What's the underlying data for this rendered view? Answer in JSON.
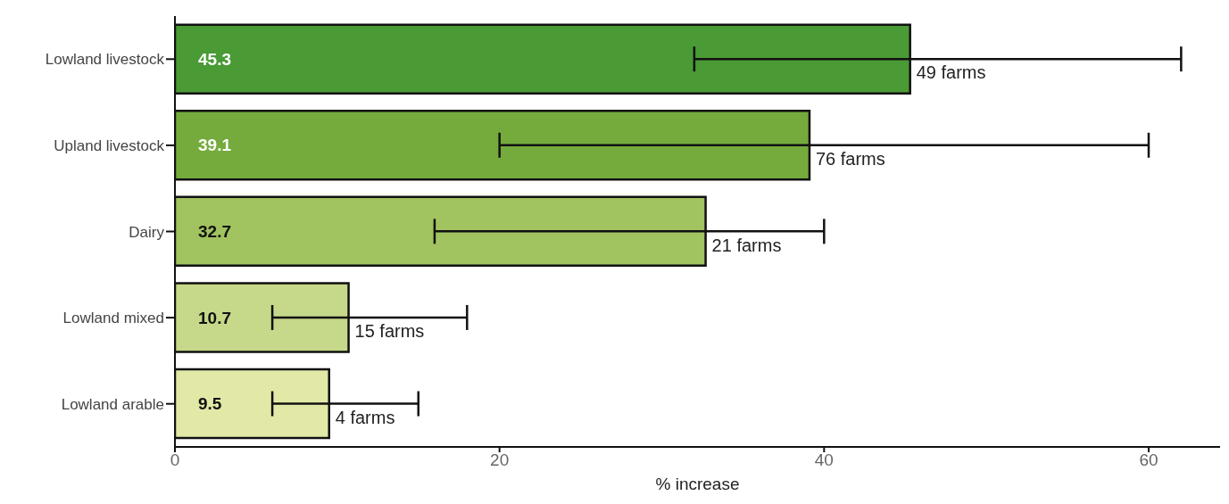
{
  "chart_data": {
    "type": "bar",
    "orientation": "horizontal",
    "xlabel": "% increase",
    "categories": [
      "Lowland livestock",
      "Upland livestock",
      "Dairy",
      "Lowland mixed",
      "Lowland arable"
    ],
    "values": [
      45.3,
      39.1,
      32.7,
      10.7,
      9.5
    ],
    "colors": [
      "#4a9a35",
      "#74ab3c",
      "#a1c360",
      "#c6d98a",
      "#e2e9a6"
    ],
    "errors": [
      [
        32,
        62
      ],
      [
        20,
        60
      ],
      [
        16,
        40
      ],
      [
        6,
        18
      ],
      [
        6,
        15
      ]
    ],
    "xlim": [
      0,
      64.4
    ],
    "xticks": [
      0,
      20,
      40,
      60
    ],
    "grid": false,
    "legend": false,
    "data_labels": true,
    "annotations": [
      {
        "text": "49 farms",
        "x": 45.3,
        "y": "Lowland livestock"
      },
      {
        "text": "76 farms",
        "x": 39.1,
        "y": "Upland livestock"
      },
      {
        "text": "21 farms",
        "x": 32.7,
        "y": "Dairy"
      },
      {
        "text": "15 farms",
        "x": 10.7,
        "y": "Lowland mixed"
      },
      {
        "text": "4 farms",
        "x": 9.5,
        "y": "Lowland arable"
      }
    ]
  }
}
